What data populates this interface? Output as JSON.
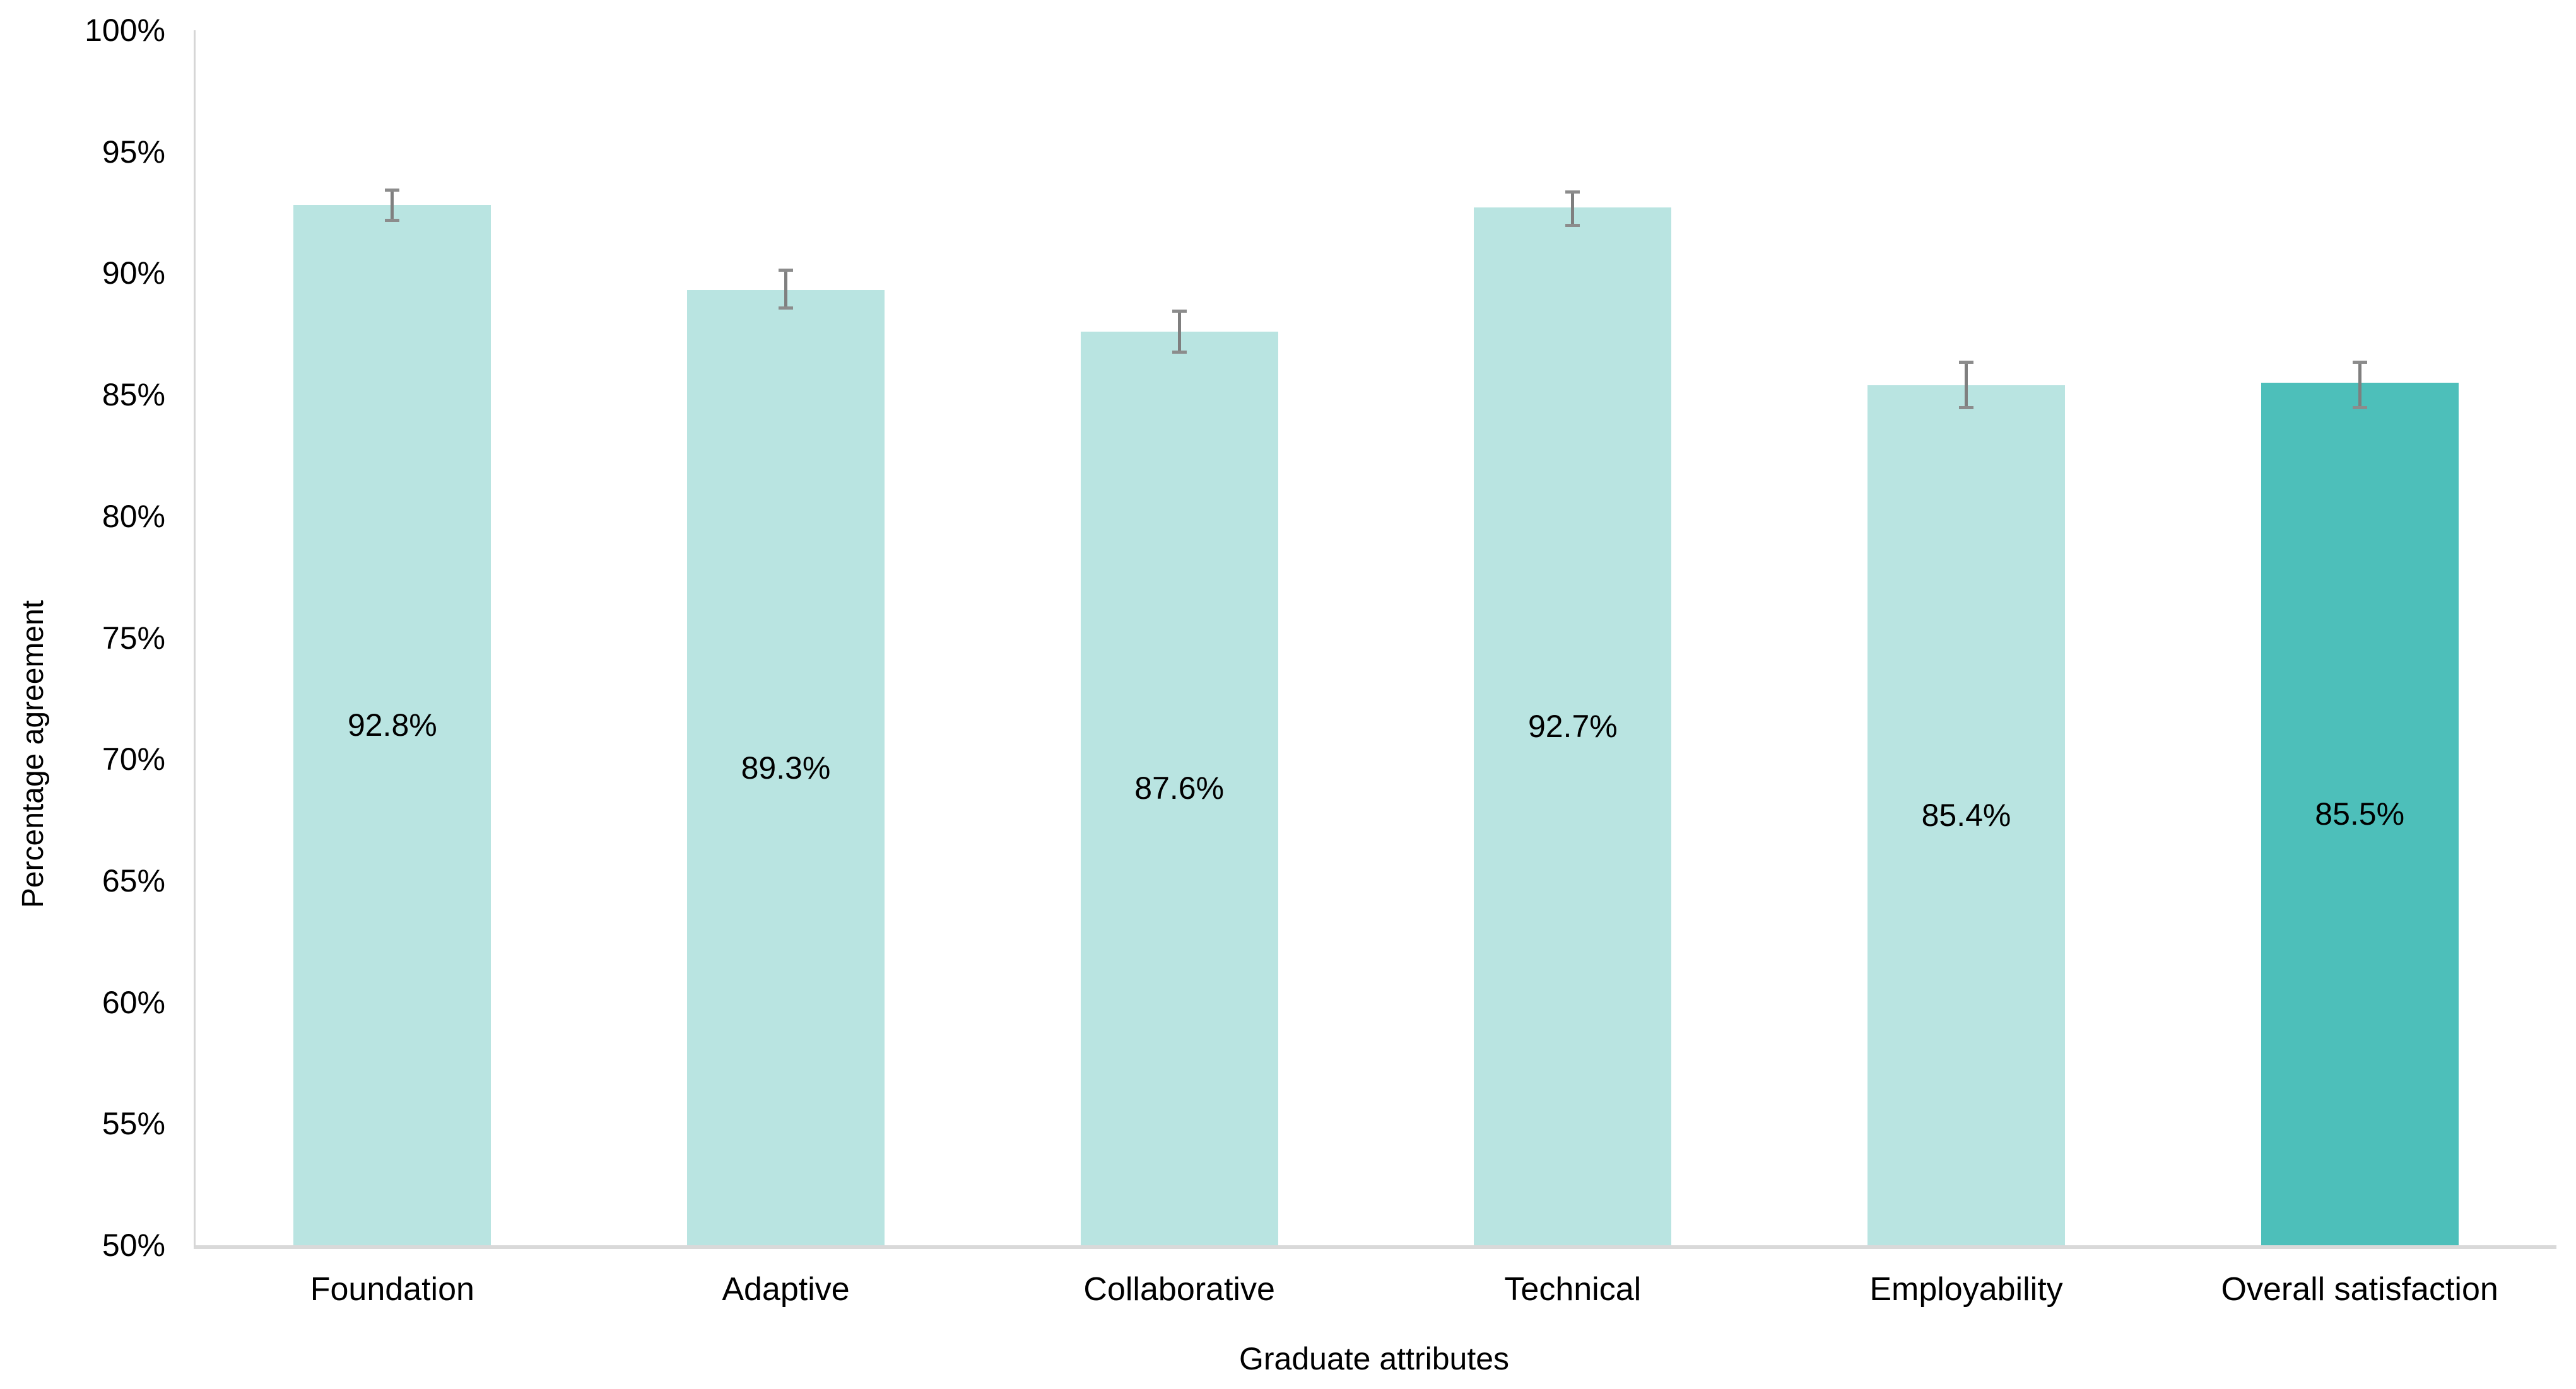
{
  "chart_data": {
    "type": "bar",
    "title": "",
    "xlabel": "Graduate attributes",
    "ylabel": "Percentage agreement",
    "categories": [
      "Foundation",
      "Adaptive",
      "Collaborative",
      "Technical",
      "Employability",
      "Overall satisfaction"
    ],
    "values": [
      92.8,
      89.3,
      87.6,
      92.7,
      85.4,
      85.5
    ],
    "value_labels": [
      "92.8%",
      "89.3%",
      "87.6%",
      "92.7%",
      "85.4%",
      "85.5%"
    ],
    "errors_plus": [
      0.7,
      0.9,
      0.9,
      0.7,
      1.0,
      0.9
    ],
    "errors_minus": [
      0.7,
      0.8,
      0.9,
      0.8,
      1.0,
      1.1
    ],
    "bar_colors": [
      "#b9e4e1",
      "#b9e4e1",
      "#b9e4e1",
      "#b9e4e1",
      "#b9e4e1",
      "#4dbfba"
    ],
    "error_bar_color": "#7f7f7f",
    "axis_line_color": "#d9d9d9",
    "ylim": [
      50,
      100
    ],
    "ytick_step": 5,
    "ytick_labels": [
      "50%",
      "55%",
      "60%",
      "65%",
      "70%",
      "75%",
      "80%",
      "85%",
      "90%",
      "95%",
      "100%"
    ],
    "grid": false,
    "legend_position": "none",
    "label_position": "inside-center"
  }
}
